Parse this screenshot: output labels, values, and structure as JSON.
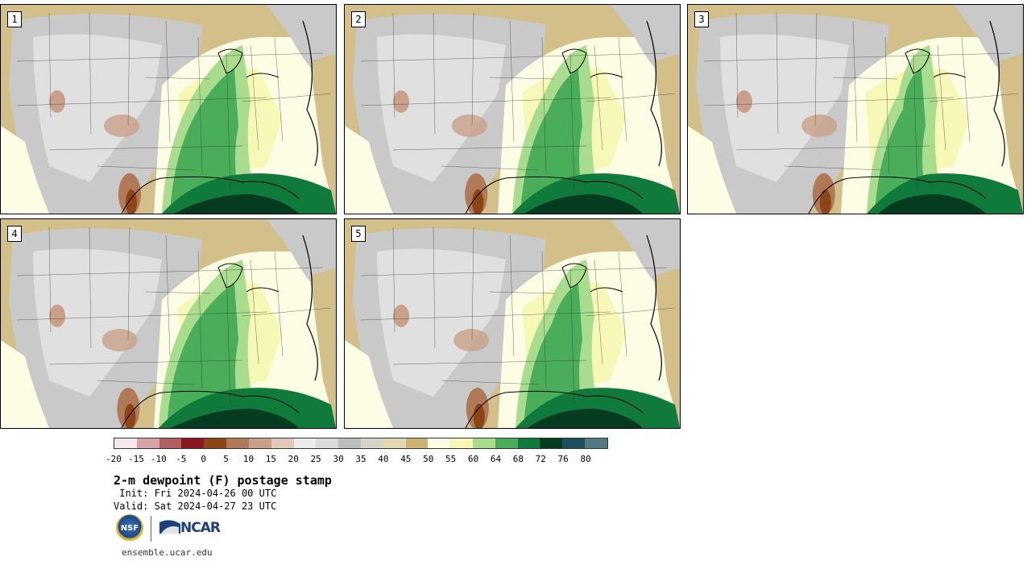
{
  "panels": [
    {
      "label": "1"
    },
    {
      "label": "2"
    },
    {
      "label": "3"
    },
    {
      "label": "4"
    },
    {
      "label": "5"
    }
  ],
  "colorbar": {
    "colors": [
      "#f5e9ec",
      "#d7a4a6",
      "#b25e62",
      "#8a1820",
      "#8c4515",
      "#b07a58",
      "#c9a18a",
      "#e2c8b8",
      "#ececec",
      "#dadada",
      "#bdbdbd",
      "#d8d4c8",
      "#e2d7b3",
      "#cdb276",
      "#fdfde5",
      "#f7f8b8",
      "#a9dc8e",
      "#49ad5a",
      "#0f7a3c",
      "#053c1f",
      "#1d4f5e",
      "#527a80"
    ],
    "tick_labels": [
      "-20",
      "-15",
      "-10",
      "-5",
      "0",
      "5",
      "10",
      "15",
      "20",
      "25",
      "30",
      "35",
      "40",
      "45",
      "50",
      "55",
      "60",
      "64",
      "68",
      "72",
      "76",
      "80"
    ]
  },
  "title": "2-m dewpoint (F) postage stamp",
  "init_text": " Init: Fri 2024-04-26 00 UTC",
  "valid_text": "Valid: Sat 2024-04-27 23 UTC",
  "logos": {
    "nsf": "NSF",
    "ncar": "NCAR"
  },
  "footer_url": "ensemble.ucar.edu"
}
